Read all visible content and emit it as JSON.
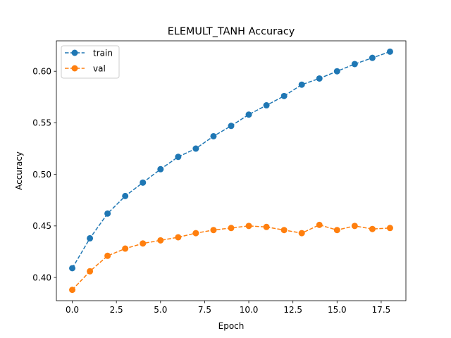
{
  "chart_data": {
    "type": "line",
    "title": "ELEMULT_TANH Accuracy",
    "xlabel": "Epoch",
    "ylabel": "Accuracy",
    "xlim": [
      -0.9,
      18.9
    ],
    "ylim": [
      0.3775,
      0.6295
    ],
    "xticks": [
      0.0,
      2.5,
      5.0,
      7.5,
      10.0,
      12.5,
      15.0,
      17.5
    ],
    "xtick_labels": [
      "0.0",
      "2.5",
      "5.0",
      "7.5",
      "10.0",
      "12.5",
      "15.0",
      "17.5"
    ],
    "yticks": [
      0.4,
      0.45,
      0.5,
      0.55,
      0.6
    ],
    "ytick_labels": [
      "0.40",
      "0.45",
      "0.50",
      "0.55",
      "0.60"
    ],
    "grid": false,
    "legend_position": "upper-left",
    "x": [
      0,
      1,
      2,
      3,
      4,
      5,
      6,
      7,
      8,
      9,
      10,
      11,
      12,
      13,
      14,
      15,
      16,
      17,
      18
    ],
    "series": [
      {
        "name": "train",
        "color": "#1f77b4",
        "values": [
          0.409,
          0.438,
          0.462,
          0.479,
          0.492,
          0.505,
          0.517,
          0.525,
          0.537,
          0.547,
          0.558,
          0.567,
          0.576,
          0.587,
          0.593,
          0.6,
          0.607,
          0.613,
          0.619
        ]
      },
      {
        "name": "val",
        "color": "#ff7f0e",
        "values": [
          0.388,
          0.406,
          0.421,
          0.428,
          0.433,
          0.436,
          0.439,
          0.443,
          0.446,
          0.448,
          0.45,
          0.449,
          0.446,
          0.443,
          0.451,
          0.446,
          0.45,
          0.447,
          0.448
        ]
      }
    ]
  }
}
